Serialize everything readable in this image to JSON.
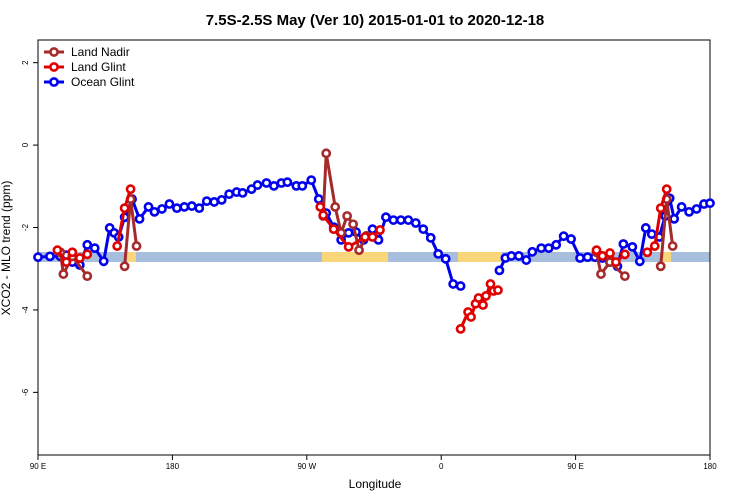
{
  "chart_data": {
    "type": "line",
    "title": "7.5S-2.5S May (Ver 10)   2015-01-01 to 2020-12-18",
    "x_label": "Longitude",
    "y_label": "XCO2 - MLO trend (ppm)",
    "xlim": [
      90,
      540
    ],
    "ylim": [
      -7.52,
      2.55
    ],
    "xticks": [
      {
        "value": 90,
        "label": "90 E"
      },
      {
        "value": 180,
        "label": "180"
      },
      {
        "value": 270,
        "label": "90 W"
      },
      {
        "value": 360,
        "label": "0"
      },
      {
        "value": 450,
        "label": "90 E"
      },
      {
        "value": 540,
        "label": "180"
      }
    ],
    "yticks": [
      2,
      0,
      -2,
      -4,
      -6
    ],
    "legend": "top-left",
    "series": [
      {
        "name": "Land Nadir",
        "color": "#a52a2a",
        "x": [
          105,
          107,
          113,
          123,
          null,
          148,
          152,
          156,
          null,
          281,
          283,
          289,
          293,
          297,
          301,
          305,
          310,
          null,
          464,
          467,
          473,
          483,
          null,
          507,
          511,
          515
        ],
        "values": [
          -2.6,
          -3.13,
          -2.7,
          -3.18,
          null,
          -2.94,
          -1.31,
          -2.45,
          null,
          -1.72,
          -0.2,
          -1.5,
          -2.13,
          -1.72,
          -1.92,
          -2.55,
          -2.2,
          null,
          -2.6,
          -3.13,
          -2.84,
          -3.18,
          null,
          -2.94,
          -1.31,
          -2.45
        ]
      },
      {
        "name": "Land Glint",
        "color": "#e00000",
        "x": [
          103,
          109,
          113,
          118,
          123,
          null,
          143,
          148,
          152,
          null,
          279,
          281,
          288,
          298,
          309,
          314,
          319,
          null,
          373,
          378,
          380,
          383,
          385,
          388,
          390,
          393,
          395,
          398,
          null,
          464,
          468,
          473,
          477,
          483,
          null,
          498,
          503,
          507,
          511
        ],
        "values": [
          -2.55,
          -2.84,
          -2.6,
          -2.74,
          -2.65,
          null,
          -2.45,
          -1.53,
          -1.07,
          null,
          -1.5,
          -1.7,
          -2.04,
          -2.47,
          -2.23,
          -2.23,
          -2.06,
          null,
          -4.46,
          -4.05,
          -4.17,
          -3.85,
          -3.71,
          -3.88,
          -3.66,
          -3.37,
          -3.54,
          -3.52,
          null,
          -2.55,
          -2.69,
          -2.62,
          -2.84,
          -2.65,
          null,
          -2.6,
          -2.45,
          -1.53,
          -1.07
        ]
      },
      {
        "name": "Ocean Glint",
        "color": "#0000ee",
        "x": [
          90,
          98,
          105,
          109,
          113,
          118,
          123,
          128,
          134,
          138,
          141,
          144,
          148,
          153,
          158,
          164,
          168,
          173,
          178,
          183,
          188,
          193,
          198,
          203,
          208,
          213,
          218,
          223,
          227,
          233,
          237,
          243,
          248,
          253,
          257,
          263,
          267,
          273,
          278,
          283,
          288,
          293,
          298,
          303,
          308,
          314,
          318,
          323,
          328,
          333,
          338,
          343,
          348,
          353,
          358,
          363,
          368,
          373,
          null,
          399,
          403,
          407,
          412,
          417,
          421,
          427,
          432,
          437,
          442,
          447,
          453,
          458,
          463,
          468,
          473,
          478,
          482,
          488,
          493,
          497,
          501,
          506,
          510,
          513,
          516,
          521,
          526,
          531,
          536,
          540
        ],
        "values": [
          -2.72,
          -2.7,
          -2.7,
          -2.67,
          -2.84,
          -2.91,
          -2.42,
          -2.5,
          -2.82,
          -2.01,
          -2.13,
          -2.23,
          -1.75,
          -1.31,
          -1.79,
          -1.5,
          -1.62,
          -1.55,
          -1.43,
          -1.53,
          -1.5,
          -1.48,
          -1.53,
          -1.36,
          -1.38,
          -1.33,
          -1.19,
          -1.14,
          -1.16,
          -1.07,
          -0.97,
          -0.92,
          -0.99,
          -0.92,
          -0.9,
          -0.99,
          -0.99,
          -0.85,
          -1.31,
          -1.65,
          -1.99,
          -2.3,
          -2.13,
          -2.11,
          -2.3,
          -2.04,
          -2.3,
          -1.75,
          -1.82,
          -1.82,
          -1.82,
          -1.89,
          -2.04,
          -2.25,
          -2.64,
          -2.76,
          -3.37,
          -3.42,
          null,
          -3.04,
          -2.74,
          -2.69,
          -2.69,
          -2.79,
          -2.59,
          -2.5,
          -2.5,
          -2.42,
          -2.21,
          -2.28,
          -2.74,
          -2.72,
          -2.72,
          -2.74,
          -2.84,
          -2.94,
          -2.4,
          -2.47,
          -2.82,
          -2.01,
          -2.16,
          -2.23,
          -1.72,
          -1.29,
          -1.79,
          -1.5,
          -1.62,
          -1.55,
          -1.43,
          -1.41
        ]
      }
    ]
  }
}
